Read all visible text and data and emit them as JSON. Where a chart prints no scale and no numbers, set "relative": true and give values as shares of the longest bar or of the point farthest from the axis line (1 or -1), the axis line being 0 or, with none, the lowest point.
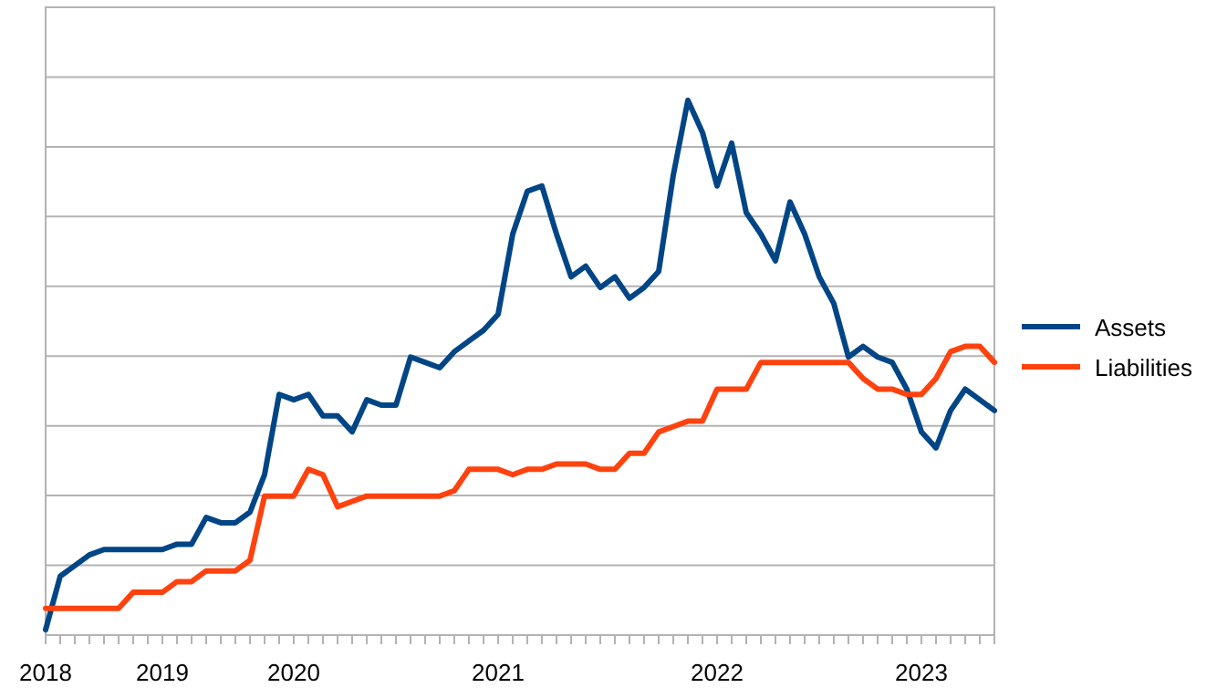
{
  "chart_data": {
    "type": "line",
    "relative": true,
    "grid": "y",
    "legend": "right",
    "categories": [
      "2018",
      null,
      null,
      null,
      null,
      null,
      null,
      null,
      "2019",
      null,
      null,
      null,
      null,
      null,
      null,
      null,
      null,
      "2020",
      null,
      null,
      null,
      null,
      null,
      null,
      null,
      null,
      null,
      null,
      null,
      null,
      null,
      "2021",
      null,
      null,
      null,
      null,
      null,
      null,
      null,
      null,
      null,
      null,
      null,
      null,
      null,
      null,
      "2022",
      null,
      null,
      null,
      null,
      null,
      null,
      null,
      null,
      null,
      null,
      null,
      null,
      null,
      "2023",
      null,
      null,
      null,
      null,
      null
    ],
    "series": [
      {
        "name": "Assets",
        "color": "#004586",
        "values": [
          0.01,
          0.11,
          0.13,
          0.15,
          0.16,
          0.16,
          0.16,
          0.16,
          0.16,
          0.17,
          0.17,
          0.22,
          0.21,
          0.21,
          0.23,
          0.3,
          0.45,
          0.44,
          0.45,
          0.41,
          0.41,
          0.38,
          0.44,
          0.43,
          0.43,
          0.52,
          0.51,
          0.5,
          0.53,
          0.55,
          0.57,
          0.6,
          0.75,
          0.83,
          0.84,
          0.75,
          0.67,
          0.69,
          0.65,
          0.67,
          0.63,
          0.65,
          0.68,
          0.86,
          1,
          0.94,
          0.84,
          0.92,
          0.79,
          0.75,
          0.7,
          0.81,
          0.75,
          0.67,
          0.62,
          0.52,
          0.54,
          0.52,
          0.51,
          0.46,
          0.38,
          0.35,
          0.42,
          0.46,
          0.44,
          0.42
        ]
      },
      {
        "name": "Liabilities",
        "color": "#ff420e",
        "values": [
          0.05,
          0.05,
          0.05,
          0.05,
          0.05,
          0.05,
          0.08,
          0.08,
          0.08,
          0.1,
          0.1,
          0.12,
          0.12,
          0.12,
          0.14,
          0.26,
          0.26,
          0.26,
          0.31,
          0.3,
          0.24,
          0.25,
          0.26,
          0.26,
          0.26,
          0.26,
          0.26,
          0.26,
          0.27,
          0.31,
          0.31,
          0.31,
          0.3,
          0.31,
          0.31,
          0.32,
          0.32,
          0.32,
          0.31,
          0.31,
          0.34,
          0.34,
          0.38,
          0.39,
          0.4,
          0.4,
          0.46,
          0.46,
          0.46,
          0.51,
          0.51,
          0.51,
          0.51,
          0.51,
          0.51,
          0.51,
          0.48,
          0.46,
          0.46,
          0.45,
          0.45,
          0.48,
          0.53,
          0.54,
          0.54,
          0.51
        ]
      }
    ]
  }
}
